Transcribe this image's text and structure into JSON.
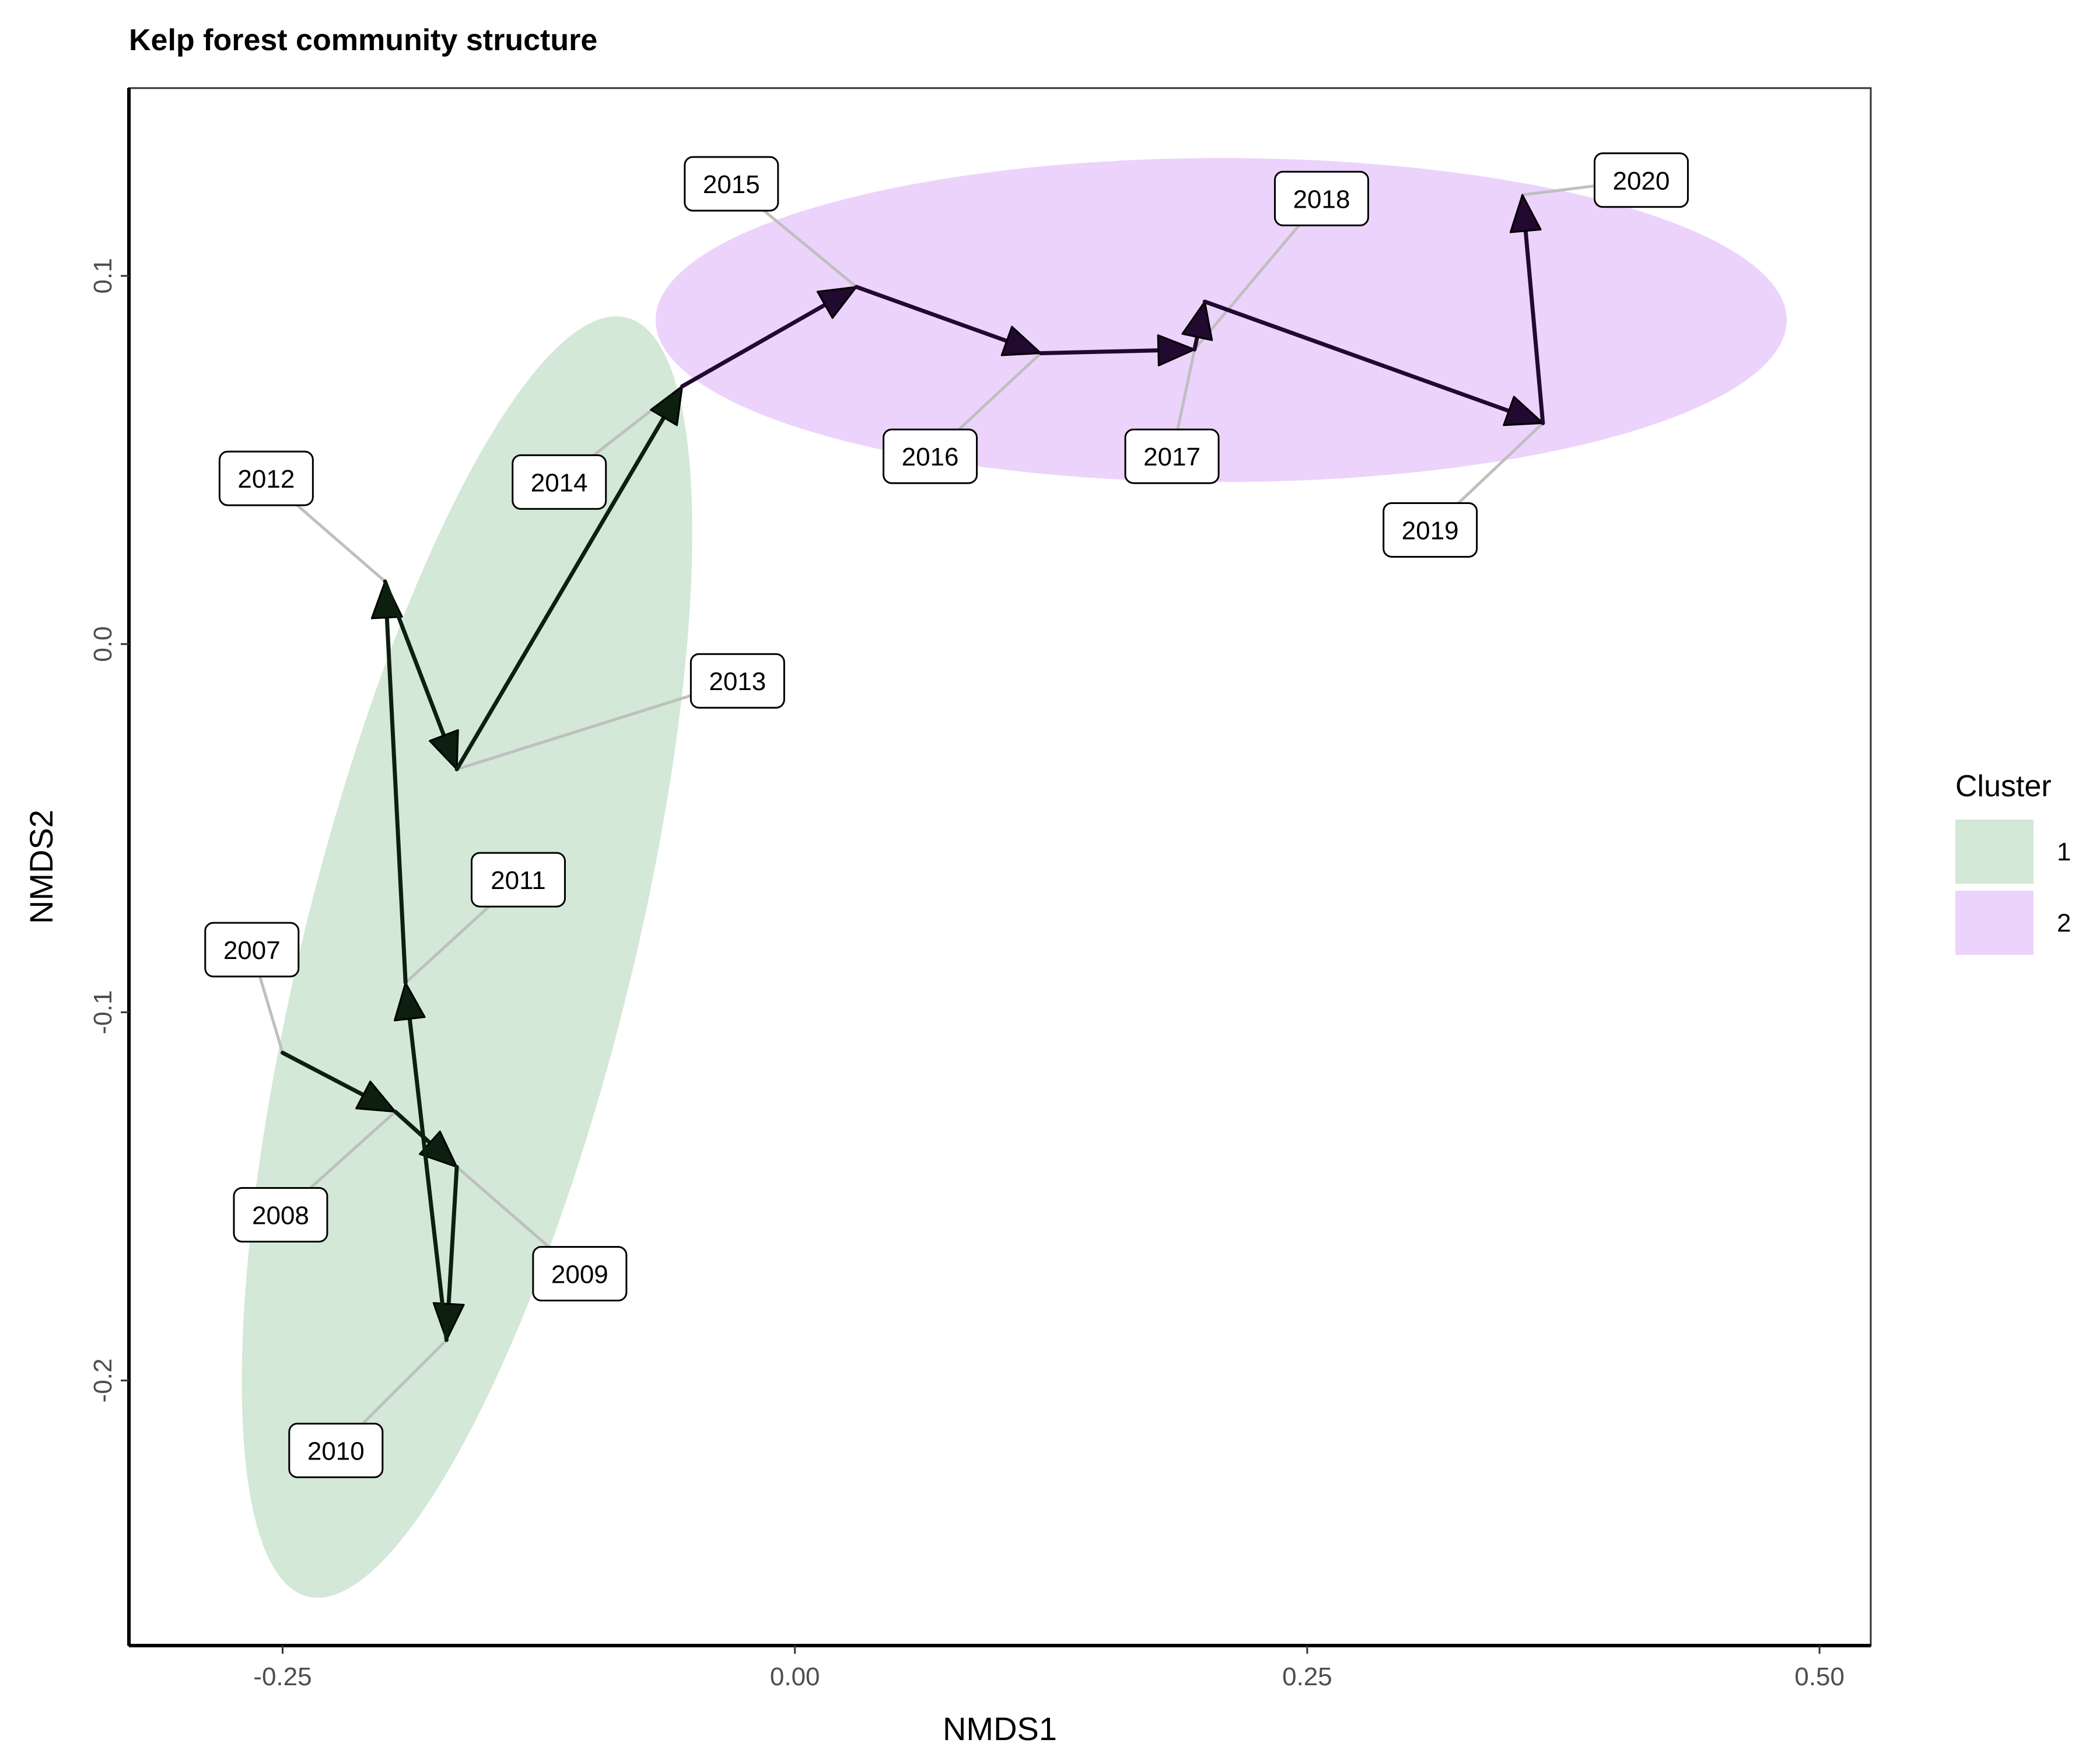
{
  "chart_data": {
    "type": "scatter",
    "title": "Kelp forest community structure",
    "xlabel": "NMDS1",
    "ylabel": "NMDS2",
    "xlim": [
      -0.325,
      0.525
    ],
    "ylim": [
      -0.272,
      0.151
    ],
    "x_ticks": [
      -0.25,
      0.0,
      0.25,
      0.5
    ],
    "x_tick_labels": [
      "-0.25",
      "0.00",
      "0.25",
      "0.50"
    ],
    "y_ticks": [
      -0.2,
      -0.1,
      0.0,
      0.1
    ],
    "y_tick_labels": [
      "-0.2",
      "-0.1",
      "0.0",
      "0.1"
    ],
    "grid": false,
    "legend": {
      "title": "Cluster",
      "position": "right",
      "entries": [
        {
          "label": "1",
          "color": "#d3e8d6"
        },
        {
          "label": "2",
          "color": "#ecd3fc"
        }
      ]
    },
    "points": [
      {
        "year": "2007",
        "x": -0.25,
        "y": -0.111,
        "cluster": "1",
        "label_x": -0.265,
        "label_y": -0.083
      },
      {
        "year": "2008",
        "x": -0.195,
        "y": -0.127,
        "cluster": "1",
        "label_x": -0.251,
        "label_y": -0.155
      },
      {
        "year": "2009",
        "x": -0.165,
        "y": -0.142,
        "cluster": "1",
        "label_x": -0.105,
        "label_y": -0.171
      },
      {
        "year": "2010",
        "x": -0.17,
        "y": -0.189,
        "cluster": "1",
        "label_x": -0.224,
        "label_y": -0.219
      },
      {
        "year": "2011",
        "x": -0.19,
        "y": -0.092,
        "cluster": "1",
        "label_x": -0.135,
        "label_y": -0.064
      },
      {
        "year": "2012",
        "x": -0.2,
        "y": 0.017,
        "cluster": "1",
        "label_x": -0.258,
        "label_y": 0.045
      },
      {
        "year": "2013",
        "x": -0.165,
        "y": -0.034,
        "cluster": "1",
        "label_x": -0.028,
        "label_y": -0.01
      },
      {
        "year": "2014",
        "x": -0.055,
        "y": 0.07,
        "cluster": "1",
        "label_x": -0.115,
        "label_y": 0.044
      },
      {
        "year": "2015",
        "x": 0.03,
        "y": 0.097,
        "cluster": "2",
        "label_x": -0.031,
        "label_y": 0.125
      },
      {
        "year": "2016",
        "x": 0.12,
        "y": 0.079,
        "cluster": "2",
        "label_x": 0.066,
        "label_y": 0.051
      },
      {
        "year": "2017",
        "x": 0.2,
        "y": 0.093,
        "cluster": "2",
        "label_x": 0.184,
        "label_y": 0.051
      },
      {
        "year": "2018",
        "x": 0.195,
        "y": 0.08,
        "cluster": "2",
        "label_x": 0.257,
        "label_y": 0.121
      },
      {
        "year": "2019",
        "x": 0.365,
        "y": 0.06,
        "cluster": "2",
        "label_x": 0.31,
        "label_y": 0.031
      },
      {
        "year": "2020",
        "x": 0.355,
        "y": 0.122,
        "cluster": "2",
        "label_x": 0.413,
        "label_y": 0.126
      }
    ],
    "trajectory_order": [
      "2007",
      "2008",
      "2009",
      "2010",
      "2011",
      "2012",
      "2013",
      "2014",
      "2015",
      "2016",
      "2018",
      "2017",
      "2019",
      "2020"
    ],
    "ellipses": [
      {
        "cluster": "1",
        "cx": -0.16,
        "cy": -0.085,
        "rx": 0.08,
        "ry": 0.179,
        "angle_deg": 14,
        "color": "#d3e8d6"
      },
      {
        "cluster": "2",
        "cx": 0.208,
        "cy": 0.088,
        "rx": 0.276,
        "ry": 0.044,
        "angle_deg": 0,
        "color": "#ecd3fc"
      }
    ],
    "arrow_colors": {
      "1": "#0d1f0f",
      "2": "#22092f"
    },
    "leader_color": "#bfbfbf"
  }
}
